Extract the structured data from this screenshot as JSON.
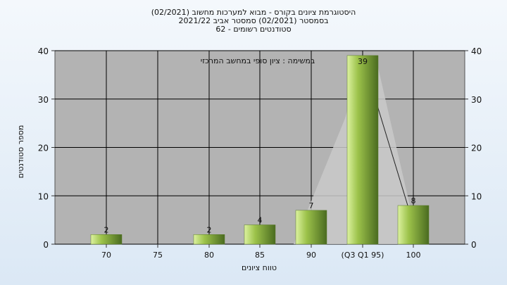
{
  "chart_data": {
    "type": "bar",
    "title_lines": [
      "היסטוגרמת ציונים בקורס - מבוא למערכות מחשוב (02/2021)",
      "בסמסטר  (02/2021)  סמסטר אביב 2021/22",
      "סטודנטים רשומים - 62"
    ],
    "annotation": "במשימה : ציון סופי במחשב המרכזי",
    "categories": [
      "70",
      "75",
      "80",
      "85",
      "90",
      "(Q3 Q1 95)",
      "100"
    ],
    "values": [
      2,
      0,
      2,
      4,
      7,
      39,
      8
    ],
    "value_labels": [
      "2",
      "",
      "2",
      "4",
      "7",
      "39",
      "8"
    ],
    "xlabel": "טווח ציונים",
    "ylabel": "מספר סטודנטים",
    "ylim": [
      0,
      40
    ],
    "yticks": [
      0,
      10,
      20,
      30,
      40
    ],
    "grid": true,
    "colors": {
      "plot_bg": "#b3b3b3",
      "grid": "#000000",
      "bar_light": "#dcf2a0",
      "bar_mid": "#9cc24a",
      "bar_dark": "#4a6b20",
      "band": "#c9c9c9"
    }
  }
}
